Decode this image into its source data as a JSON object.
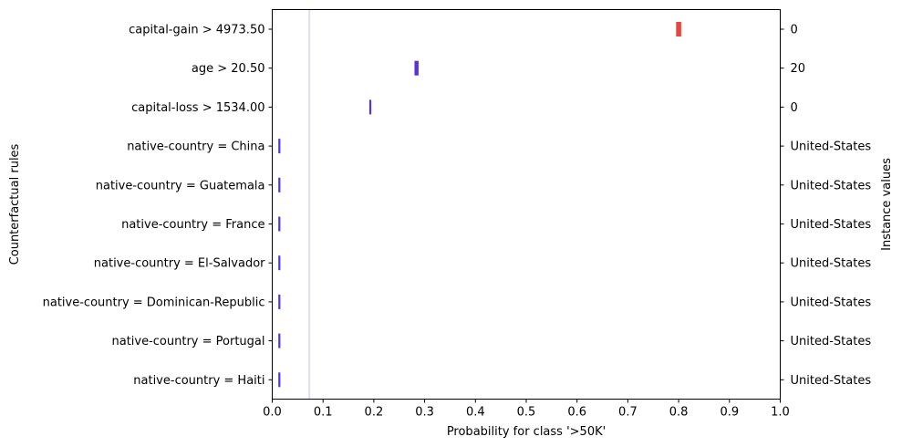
{
  "chart_data": {
    "type": "interval",
    "title": "",
    "xlabel": "Probability for class '>50K'",
    "ylabel": "Counterfactual rules",
    "y2label": "Instance values",
    "xlim": [
      0.0,
      1.0
    ],
    "xticks": [
      "0.0",
      "0.1",
      "0.2",
      "0.3",
      "0.4",
      "0.5",
      "0.6",
      "0.7",
      "0.8",
      "0.9",
      "1.0"
    ],
    "grid": false,
    "baseline": 0.073,
    "baseline_color": "#dcdcf5",
    "rules": [
      {
        "label": "capital-gain > 4973.50",
        "instance_value": "0",
        "low": 0.795,
        "high": 0.805,
        "color": "#e8453c"
      },
      {
        "label": "age > 20.50",
        "instance_value": "20",
        "low": 0.28,
        "high": 0.288,
        "color": "#5533dd"
      },
      {
        "label": "capital-loss > 1534.00",
        "instance_value": "0",
        "low": 0.191,
        "high": 0.195,
        "color": "#5533dd"
      },
      {
        "label": "native-country = China",
        "instance_value": "United-States",
        "low": 0.012,
        "high": 0.016,
        "color": "#5533dd"
      },
      {
        "label": "native-country = Guatemala",
        "instance_value": "United-States",
        "low": 0.012,
        "high": 0.016,
        "color": "#5533dd"
      },
      {
        "label": "native-country = France",
        "instance_value": "United-States",
        "low": 0.012,
        "high": 0.016,
        "color": "#5533dd"
      },
      {
        "label": "native-country = El-Salvador",
        "instance_value": "United-States",
        "low": 0.012,
        "high": 0.016,
        "color": "#5533dd"
      },
      {
        "label": "native-country = Dominican-Republic",
        "instance_value": "United-States",
        "low": 0.012,
        "high": 0.016,
        "color": "#5533dd"
      },
      {
        "label": "native-country = Portugal",
        "instance_value": "United-States",
        "low": 0.012,
        "high": 0.016,
        "color": "#5533dd"
      },
      {
        "label": "native-country = Haiti",
        "instance_value": "United-States",
        "low": 0.012,
        "high": 0.016,
        "color": "#5533dd"
      }
    ]
  }
}
